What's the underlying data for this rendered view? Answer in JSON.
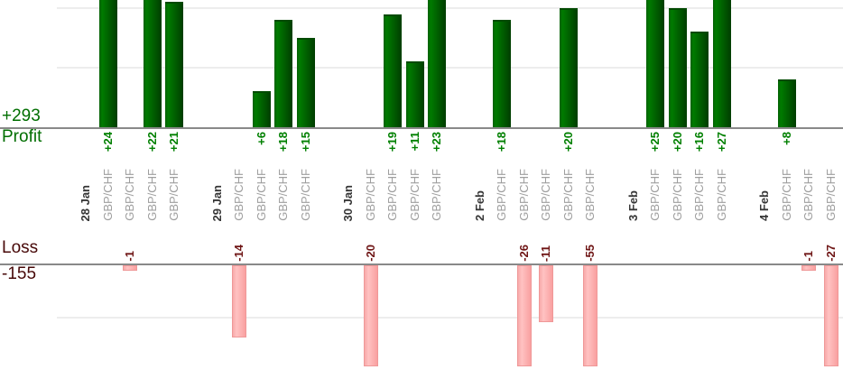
{
  "chart_data": {
    "type": "bar",
    "title": "",
    "profit_section": {
      "total_label": "+293",
      "axis_name": "Profit",
      "total": 293,
      "gridline_values": [
        10,
        20
      ]
    },
    "loss_section": {
      "axis_name": "Loss",
      "total_label": "-155",
      "total": -155,
      "gridline_values": [
        -10
      ]
    },
    "groups": [
      {
        "date": "28 Jan",
        "trades": [
          {
            "symbol": "GBP/CHF",
            "value": 24,
            "label": "+24"
          },
          {
            "symbol": "GBP/CHF",
            "value": -1,
            "label": "-1"
          },
          {
            "symbol": "GBP/CHF",
            "value": 22,
            "label": "+22"
          },
          {
            "symbol": "GBP/CHF",
            "value": 21,
            "label": "+21"
          }
        ]
      },
      {
        "date": "29 Jan",
        "trades": [
          {
            "symbol": "GBP/CHF",
            "value": -14,
            "label": "-14"
          },
          {
            "symbol": "GBP/CHF",
            "value": 6,
            "label": "+6"
          },
          {
            "symbol": "GBP/CHF",
            "value": 18,
            "label": "+18"
          },
          {
            "symbol": "GBP/CHF",
            "value": 15,
            "label": "+15"
          }
        ]
      },
      {
        "date": "30 Jan",
        "trades": [
          {
            "symbol": "GBP/CHF",
            "value": -20,
            "label": "-20"
          },
          {
            "symbol": "GBP/CHF",
            "value": 19,
            "label": "+19"
          },
          {
            "symbol": "GBP/CHF",
            "value": 11,
            "label": "+11"
          },
          {
            "symbol": "GBP/CHF",
            "value": 23,
            "label": "+23"
          }
        ]
      },
      {
        "date": "2 Feb",
        "trades": [
          {
            "symbol": "GBP/CHF",
            "value": 18,
            "label": "+18"
          },
          {
            "symbol": "GBP/CHF",
            "value": -26,
            "label": "-26"
          },
          {
            "symbol": "GBP/CHF",
            "value": -11,
            "label": "-11"
          },
          {
            "symbol": "GBP/CHF",
            "value": 20,
            "label": "+20"
          },
          {
            "symbol": "GBP/CHF",
            "value": -55,
            "label": "-55"
          }
        ]
      },
      {
        "date": "3 Feb",
        "trades": [
          {
            "symbol": "GBP/CHF",
            "value": 25,
            "label": "+25"
          },
          {
            "symbol": "GBP/CHF",
            "value": 20,
            "label": "+20"
          },
          {
            "symbol": "GBP/CHF",
            "value": 16,
            "label": "+16"
          },
          {
            "symbol": "GBP/CHF",
            "value": 27,
            "label": "+27"
          }
        ]
      },
      {
        "date": "4 Feb",
        "trades": [
          {
            "symbol": "GBP/CHF",
            "value": 8,
            "label": "+8"
          },
          {
            "symbol": "GBP/CHF",
            "value": -1,
            "label": "-1"
          },
          {
            "symbol": "GBP/CHF",
            "value": -27,
            "label": "-27"
          }
        ]
      }
    ],
    "colors": {
      "profit_bar_light": "#007b00",
      "profit_bar_dark": "#003d00",
      "profit_value_text": "#008000",
      "profit_axis_text": "#006e00",
      "loss_bar_light": "#ffc2c2",
      "loss_bar_dark": "#f9a0a0",
      "loss_bar_border": "#ef9898",
      "loss_value_text": "#6f1616",
      "loss_axis_text": "#470808",
      "date_text": "#363636",
      "symbol_text": "#9e9e9e",
      "axis_line": "#898989",
      "gridline": "#ededed"
    }
  }
}
